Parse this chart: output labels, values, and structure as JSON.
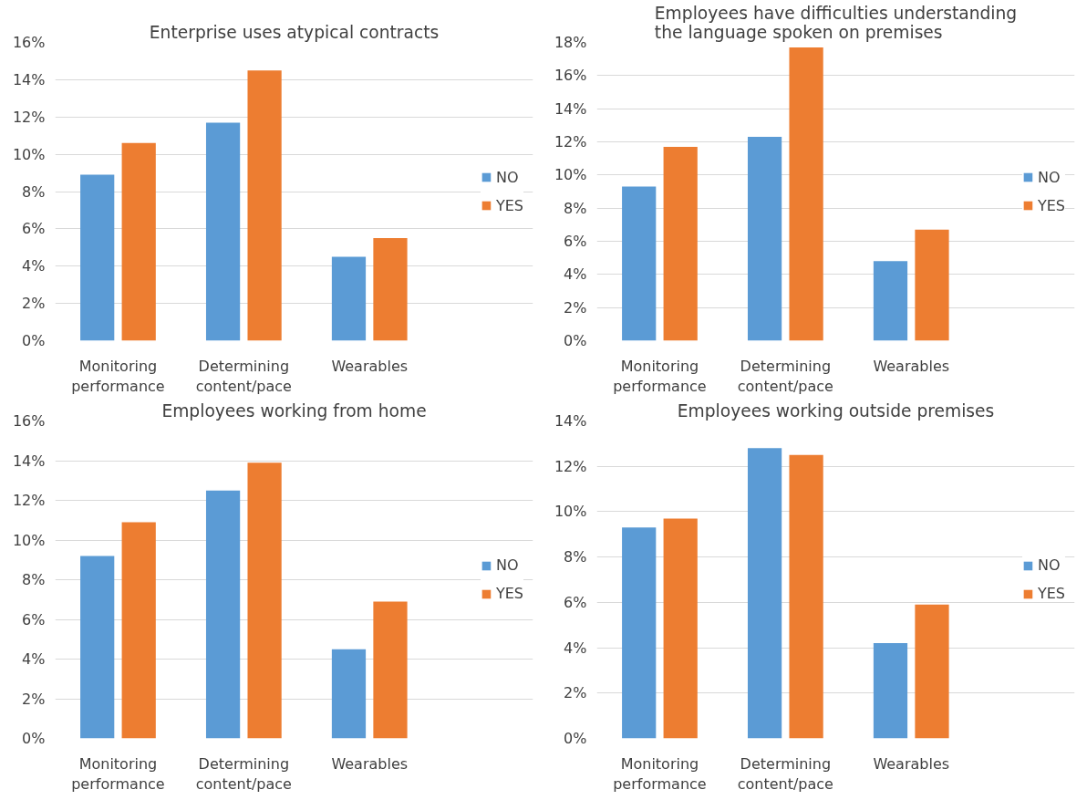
{
  "chart_data": [
    {
      "type": "bar",
      "title": "Enterprise uses atypical contracts",
      "categories": [
        "Monitoring performance",
        "Determining content/pace",
        "Wearables"
      ],
      "series": [
        {
          "name": "NO",
          "color": "#5b9bd5",
          "values": [
            8.9,
            11.7,
            4.5
          ]
        },
        {
          "name": "YES",
          "color": "#ed7d31",
          "values": [
            10.6,
            14.5,
            5.5
          ]
        }
      ],
      "ylim": [
        0,
        16
      ],
      "yticks": [
        {
          "value": 0,
          "label": "0%"
        },
        {
          "value": 2,
          "label": "2%"
        },
        {
          "value": 4,
          "label": "4%"
        },
        {
          "value": 6,
          "label": "6%"
        },
        {
          "value": 8,
          "label": "8%"
        },
        {
          "value": 10,
          "label": "10%"
        },
        {
          "value": 12,
          "label": "12%"
        },
        {
          "value": 14,
          "label": "14%"
        },
        {
          "value": 16,
          "label": "16%"
        }
      ],
      "grid": "y",
      "legend": "right"
    },
    {
      "type": "bar",
      "title": "Employees have difficulties understanding the language spoken on premises",
      "categories": [
        "Monitoring performance",
        "Determining content/pace",
        "Wearables"
      ],
      "series": [
        {
          "name": "NO",
          "color": "#5b9bd5",
          "values": [
            9.3,
            12.3,
            4.8
          ]
        },
        {
          "name": "YES",
          "color": "#ed7d31",
          "values": [
            11.7,
            17.7,
            6.7
          ]
        }
      ],
      "ylim": [
        0,
        18
      ],
      "yticks": [
        {
          "value": 0,
          "label": "0%"
        },
        {
          "value": 2,
          "label": "2%"
        },
        {
          "value": 4,
          "label": "4%"
        },
        {
          "value": 6,
          "label": "6%"
        },
        {
          "value": 8,
          "label": "8%"
        },
        {
          "value": 10,
          "label": "10%"
        },
        {
          "value": 12,
          "label": "12%"
        },
        {
          "value": 14,
          "label": "14%"
        },
        {
          "value": 16,
          "label": "16%"
        },
        {
          "value": 18,
          "label": "18%"
        }
      ],
      "grid": "y",
      "legend": "right"
    },
    {
      "type": "bar",
      "title": "Employees working from home",
      "categories": [
        "Monitoring performance",
        "Determining content/pace",
        "Wearables"
      ],
      "series": [
        {
          "name": "NO",
          "color": "#5b9bd5",
          "values": [
            9.2,
            12.5,
            4.5
          ]
        },
        {
          "name": "YES",
          "color": "#ed7d31",
          "values": [
            10.9,
            13.9,
            6.9
          ]
        }
      ],
      "ylim": [
        0,
        16
      ],
      "yticks": [
        {
          "value": 0,
          "label": "0%"
        },
        {
          "value": 2,
          "label": "2%"
        },
        {
          "value": 4,
          "label": "4%"
        },
        {
          "value": 6,
          "label": "6%"
        },
        {
          "value": 8,
          "label": "8%"
        },
        {
          "value": 10,
          "label": "10%"
        },
        {
          "value": 12,
          "label": "12%"
        },
        {
          "value": 14,
          "label": "14%"
        },
        {
          "value": 16,
          "label": "16%"
        }
      ],
      "grid": "y",
      "legend": "right"
    },
    {
      "type": "bar",
      "title": "Employees working outside premises",
      "categories": [
        "Monitoring performance",
        "Determining content/pace",
        "Wearables"
      ],
      "series": [
        {
          "name": "NO",
          "color": "#5b9bd5",
          "values": [
            9.3,
            12.8,
            4.2
          ]
        },
        {
          "name": "YES",
          "color": "#ed7d31",
          "values": [
            9.7,
            12.5,
            5.9
          ]
        }
      ],
      "ylim": [
        0,
        14
      ],
      "yticks": [
        {
          "value": 0,
          "label": "0%"
        },
        {
          "value": 2,
          "label": "2%"
        },
        {
          "value": 4,
          "label": "4%"
        },
        {
          "value": 6,
          "label": "6%"
        },
        {
          "value": 8,
          "label": "8%"
        },
        {
          "value": 10,
          "label": "10%"
        },
        {
          "value": 12,
          "label": "12%"
        },
        {
          "value": 14,
          "label": "14%"
        }
      ],
      "grid": "y",
      "legend": "right"
    }
  ]
}
